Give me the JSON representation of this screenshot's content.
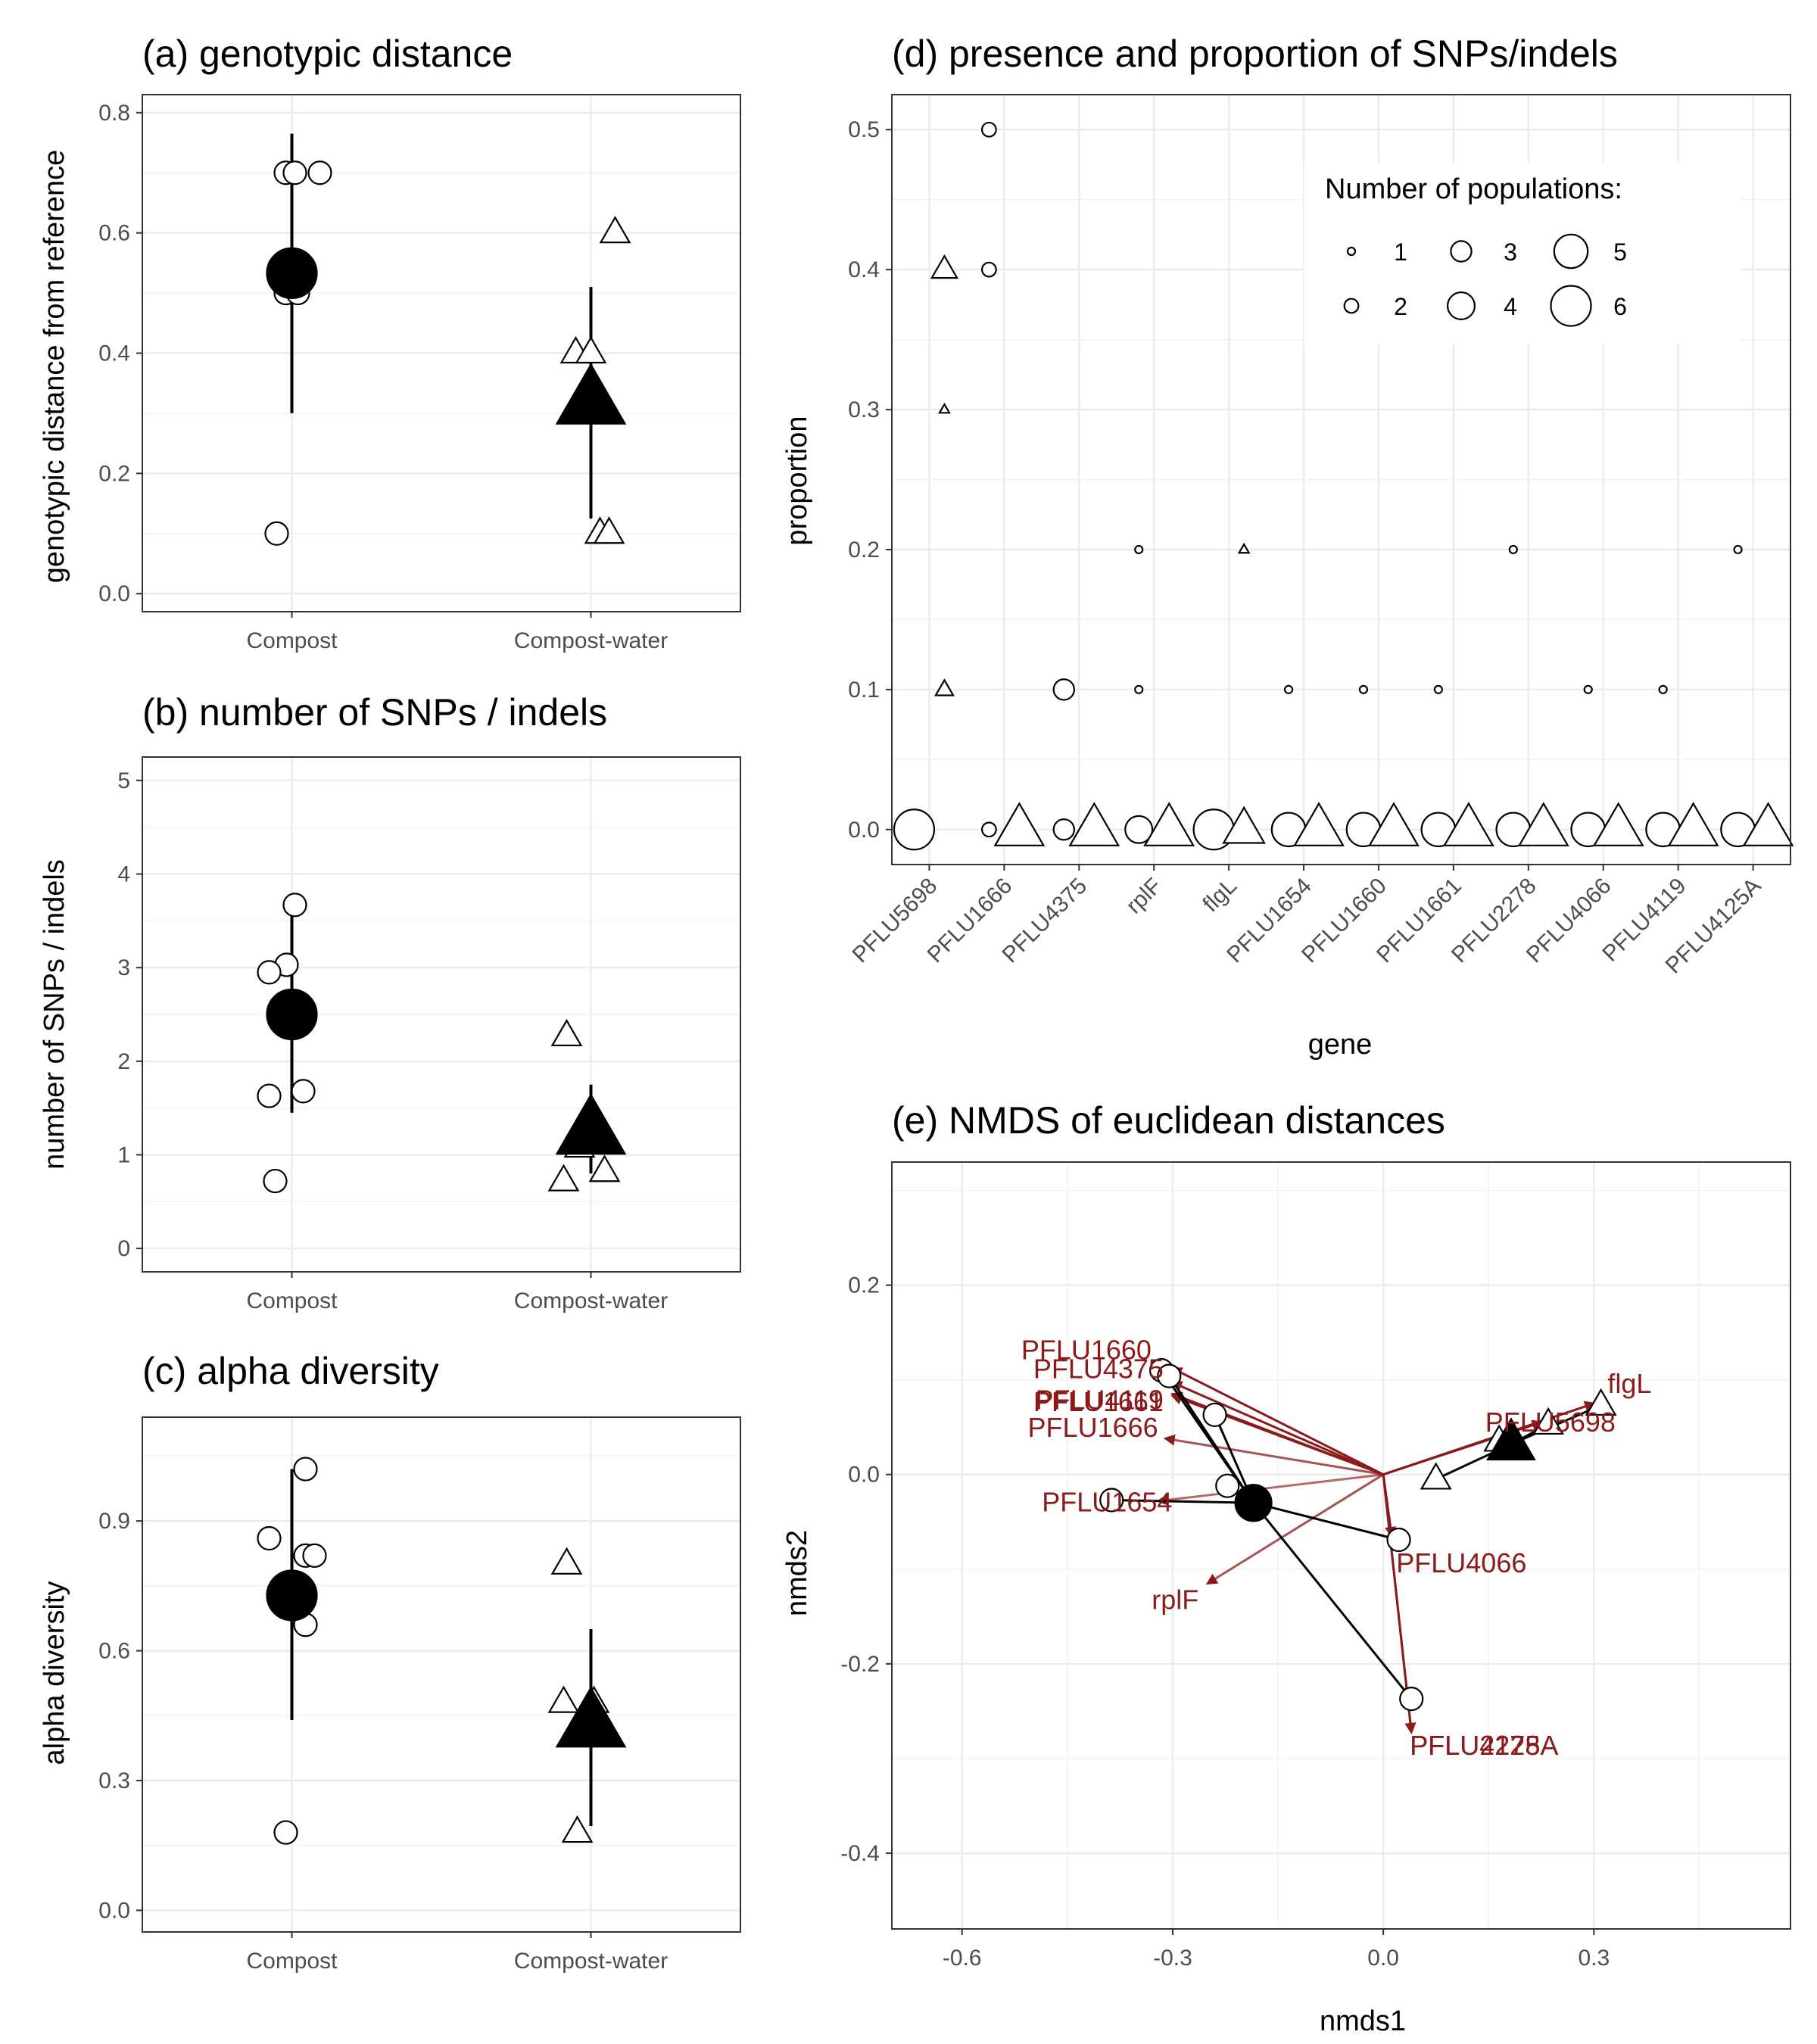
{
  "chart_data": [
    {
      "id": "a",
      "type": "scatter",
      "title": "(a) genotypic distance",
      "xlabel": "",
      "ylabel": "genotypic distance from reference",
      "categories": [
        "Compost",
        "Compost-water"
      ],
      "ylim": [
        -0.03,
        0.83
      ],
      "yticks": [
        "0.0",
        "0.2",
        "0.4",
        "0.6",
        "0.8"
      ],
      "series": [
        {
          "category": "Compost",
          "shape": "circle",
          "points": [
            0.7,
            0.7,
            0.7,
            0.5,
            0.5,
            0.1
          ]
        },
        {
          "category": "Compost-water",
          "shape": "triangle",
          "points": [
            0.6,
            0.4,
            0.4,
            0.1,
            0.1
          ]
        }
      ],
      "means": [
        {
          "category": "Compost",
          "mean": 0.533,
          "lo": 0.3,
          "hi": 0.765
        },
        {
          "category": "Compost-water",
          "mean": 0.32,
          "lo": 0.125,
          "hi": 0.51
        }
      ],
      "grid": true
    },
    {
      "id": "b",
      "type": "scatter",
      "title": "(b) number of SNPs / indels",
      "xlabel": "",
      "ylabel": "number of SNPs / indels",
      "categories": [
        "Compost",
        "Compost-water"
      ],
      "ylim": [
        -0.25,
        5.25
      ],
      "yticks": [
        "0",
        "1",
        "2",
        "3",
        "4",
        "5"
      ],
      "series": [
        {
          "category": "Compost",
          "shape": "circle",
          "points": [
            3.67,
            3.03,
            2.95,
            1.68,
            1.63,
            0.72
          ]
        },
        {
          "category": "Compost-water",
          "shape": "triangle",
          "points": [
            2.27,
            1.08,
            0.82,
            0.72
          ]
        }
      ],
      "means": [
        {
          "category": "Compost",
          "mean": 2.5,
          "lo": 1.45,
          "hi": 3.55
        },
        {
          "category": "Compost-water",
          "mean": 1.25,
          "lo": 0.8,
          "hi": 1.75
        }
      ],
      "grid": true
    },
    {
      "id": "c",
      "type": "scatter",
      "title": "(c) alpha diversity",
      "xlabel": "",
      "ylabel": "alpha diversity",
      "categories": [
        "Compost",
        "Compost-water"
      ],
      "ylim": [
        -0.05,
        1.14
      ],
      "yticks": [
        "0.0",
        "0.3",
        "0.6",
        "0.9"
      ],
      "series": [
        {
          "category": "Compost",
          "shape": "circle",
          "points": [
            1.02,
            0.86,
            0.82,
            0.82,
            0.66,
            0.18
          ]
        },
        {
          "category": "Compost-water",
          "shape": "triangle",
          "points": [
            0.8,
            0.48,
            0.48,
            0.18
          ]
        }
      ],
      "means": [
        {
          "category": "Compost",
          "mean": 0.728,
          "lo": 0.44,
          "hi": 1.02
        },
        {
          "category": "Compost-water",
          "mean": 0.43,
          "lo": 0.195,
          "hi": 0.65
        }
      ],
      "grid": true
    },
    {
      "id": "d",
      "type": "scatter",
      "title": "(d) presence and proportion of SNPs/indels",
      "xlabel": "gene",
      "ylabel": "proportion",
      "categories": [
        "PFLU5698",
        "PFLU1666",
        "PFLU4375",
        "rplF",
        "flgL",
        "PFLU1654",
        "PFLU1660",
        "PFLU1661",
        "PFLU2278",
        "PFLU4066",
        "PFLU4119",
        "PFLU4125A"
      ],
      "ylim": [
        -0.025,
        0.525
      ],
      "yticks": [
        "0.0",
        "0.1",
        "0.2",
        "0.3",
        "0.4",
        "0.5"
      ],
      "legend": {
        "title": "Number of populations:",
        "items": [
          1,
          2,
          3,
          4,
          5,
          6
        ],
        "position": "top-right"
      },
      "points": [
        {
          "gene": "PFLU5698",
          "shape": "circle",
          "y": 0.0,
          "n": 6
        },
        {
          "gene": "PFLU5698",
          "shape": "triangle",
          "y": 0.4,
          "n": 3
        },
        {
          "gene": "PFLU5698",
          "shape": "triangle",
          "y": 0.3,
          "n": 1
        },
        {
          "gene": "PFLU5698",
          "shape": "triangle",
          "y": 0.1,
          "n": 2
        },
        {
          "gene": "PFLU1666",
          "shape": "circle",
          "y": 0.5,
          "n": 2
        },
        {
          "gene": "PFLU1666",
          "shape": "circle",
          "y": 0.4,
          "n": 2
        },
        {
          "gene": "PFLU1666",
          "shape": "circle",
          "y": 0.0,
          "n": 2
        },
        {
          "gene": "PFLU1666",
          "shape": "triangle",
          "y": 0.0,
          "n": 6
        },
        {
          "gene": "PFLU4375",
          "shape": "circle",
          "y": 0.1,
          "n": 3
        },
        {
          "gene": "PFLU4375",
          "shape": "circle",
          "y": 0.0,
          "n": 3
        },
        {
          "gene": "PFLU4375",
          "shape": "triangle",
          "y": 0.0,
          "n": 6
        },
        {
          "gene": "rplF",
          "shape": "circle",
          "y": 0.2,
          "n": 1
        },
        {
          "gene": "rplF",
          "shape": "circle",
          "y": 0.1,
          "n": 1
        },
        {
          "gene": "rplF",
          "shape": "circle",
          "y": 0.0,
          "n": 4
        },
        {
          "gene": "rplF",
          "shape": "triangle",
          "y": 0.0,
          "n": 6
        },
        {
          "gene": "flgL",
          "shape": "circle",
          "y": 0.0,
          "n": 6
        },
        {
          "gene": "flgL",
          "shape": "triangle",
          "y": 0.2,
          "n": 1
        },
        {
          "gene": "flgL",
          "shape": "triangle",
          "y": 0.0,
          "n": 5
        },
        {
          "gene": "PFLU1654",
          "shape": "circle",
          "y": 0.1,
          "n": 1
        },
        {
          "gene": "PFLU1654",
          "shape": "circle",
          "y": 0.0,
          "n": 5
        },
        {
          "gene": "PFLU1654",
          "shape": "triangle",
          "y": 0.0,
          "n": 6
        },
        {
          "gene": "PFLU1660",
          "shape": "circle",
          "y": 0.1,
          "n": 1
        },
        {
          "gene": "PFLU1660",
          "shape": "circle",
          "y": 0.0,
          "n": 5
        },
        {
          "gene": "PFLU1660",
          "shape": "triangle",
          "y": 0.0,
          "n": 6
        },
        {
          "gene": "PFLU1661",
          "shape": "circle",
          "y": 0.1,
          "n": 1
        },
        {
          "gene": "PFLU1661",
          "shape": "circle",
          "y": 0.0,
          "n": 5
        },
        {
          "gene": "PFLU1661",
          "shape": "triangle",
          "y": 0.0,
          "n": 6
        },
        {
          "gene": "PFLU2278",
          "shape": "circle",
          "y": 0.2,
          "n": 1
        },
        {
          "gene": "PFLU2278",
          "shape": "circle",
          "y": 0.0,
          "n": 5
        },
        {
          "gene": "PFLU2278",
          "shape": "triangle",
          "y": 0.0,
          "n": 6
        },
        {
          "gene": "PFLU4066",
          "shape": "circle",
          "y": 0.1,
          "n": 1
        },
        {
          "gene": "PFLU4066",
          "shape": "circle",
          "y": 0.0,
          "n": 5
        },
        {
          "gene": "PFLU4066",
          "shape": "triangle",
          "y": 0.0,
          "n": 6
        },
        {
          "gene": "PFLU4119",
          "shape": "circle",
          "y": 0.1,
          "n": 1
        },
        {
          "gene": "PFLU4119",
          "shape": "circle",
          "y": 0.0,
          "n": 5
        },
        {
          "gene": "PFLU4119",
          "shape": "triangle",
          "y": 0.0,
          "n": 6
        },
        {
          "gene": "PFLU4125A",
          "shape": "circle",
          "y": 0.2,
          "n": 1
        },
        {
          "gene": "PFLU4125A",
          "shape": "circle",
          "y": 0.0,
          "n": 5
        },
        {
          "gene": "PFLU4125A",
          "shape": "triangle",
          "y": 0.0,
          "n": 6
        }
      ],
      "grid": true
    },
    {
      "id": "e",
      "type": "scatter",
      "title": "(e) NMDS of euclidean distances",
      "xlabel": "nmds1",
      "ylabel": "nmds2",
      "xlim": [
        -0.7,
        0.58
      ],
      "ylim": [
        -0.48,
        0.33
      ],
      "xticks": [
        "-0.6",
        "-0.3",
        "0.0",
        "0.3"
      ],
      "yticks": [
        "-0.4",
        "-0.2",
        "0.0",
        "0.2"
      ],
      "centroids": [
        {
          "shape": "circle",
          "x": -0.185,
          "y": -0.03
        },
        {
          "shape": "triangle",
          "x": 0.182,
          "y": 0.032
        }
      ],
      "points": [
        {
          "shape": "circle",
          "x": -0.316,
          "y": 0.11
        },
        {
          "shape": "circle",
          "x": -0.305,
          "y": 0.104
        },
        {
          "shape": "circle",
          "x": -0.24,
          "y": 0.063
        },
        {
          "shape": "circle",
          "x": -0.222,
          "y": -0.012
        },
        {
          "shape": "circle",
          "x": -0.387,
          "y": -0.027
        },
        {
          "shape": "circle",
          "x": 0.022,
          "y": -0.069
        },
        {
          "shape": "circle",
          "x": 0.04,
          "y": -0.237
        },
        {
          "shape": "triangle",
          "x": 0.165,
          "y": 0.035
        },
        {
          "shape": "triangle",
          "x": 0.235,
          "y": 0.053
        },
        {
          "shape": "triangle",
          "x": 0.31,
          "y": 0.073
        },
        {
          "shape": "triangle",
          "x": 0.075,
          "y": -0.005
        }
      ],
      "vectors": [
        {
          "label": "PFLU1660",
          "x": -0.3,
          "y": 0.112
        },
        {
          "label": "PFLU4375",
          "x": -0.3,
          "y": 0.097
        },
        {
          "label": "PFLU4119",
          "x": -0.3,
          "y": 0.085
        },
        {
          "label": "PFLU1661",
          "x": -0.3,
          "y": 0.083
        },
        {
          "label": "PFLU1666",
          "x": -0.31,
          "y": 0.038
        },
        {
          "label": "PFLU1654",
          "x": -0.32,
          "y": -0.028
        },
        {
          "label": "rplF",
          "x": -0.25,
          "y": -0.115
        },
        {
          "label": "PFLU4066",
          "x": 0.012,
          "y": -0.065
        },
        {
          "label": "PFLU2278",
          "x": 0.04,
          "y": -0.272
        },
        {
          "label": "PFLU4125A",
          "x": 0.04,
          "y": -0.272
        },
        {
          "label": "PFLU5698",
          "x": 0.225,
          "y": 0.055
        },
        {
          "label": "flgL",
          "x": 0.3,
          "y": 0.075
        }
      ],
      "grid": true
    }
  ]
}
